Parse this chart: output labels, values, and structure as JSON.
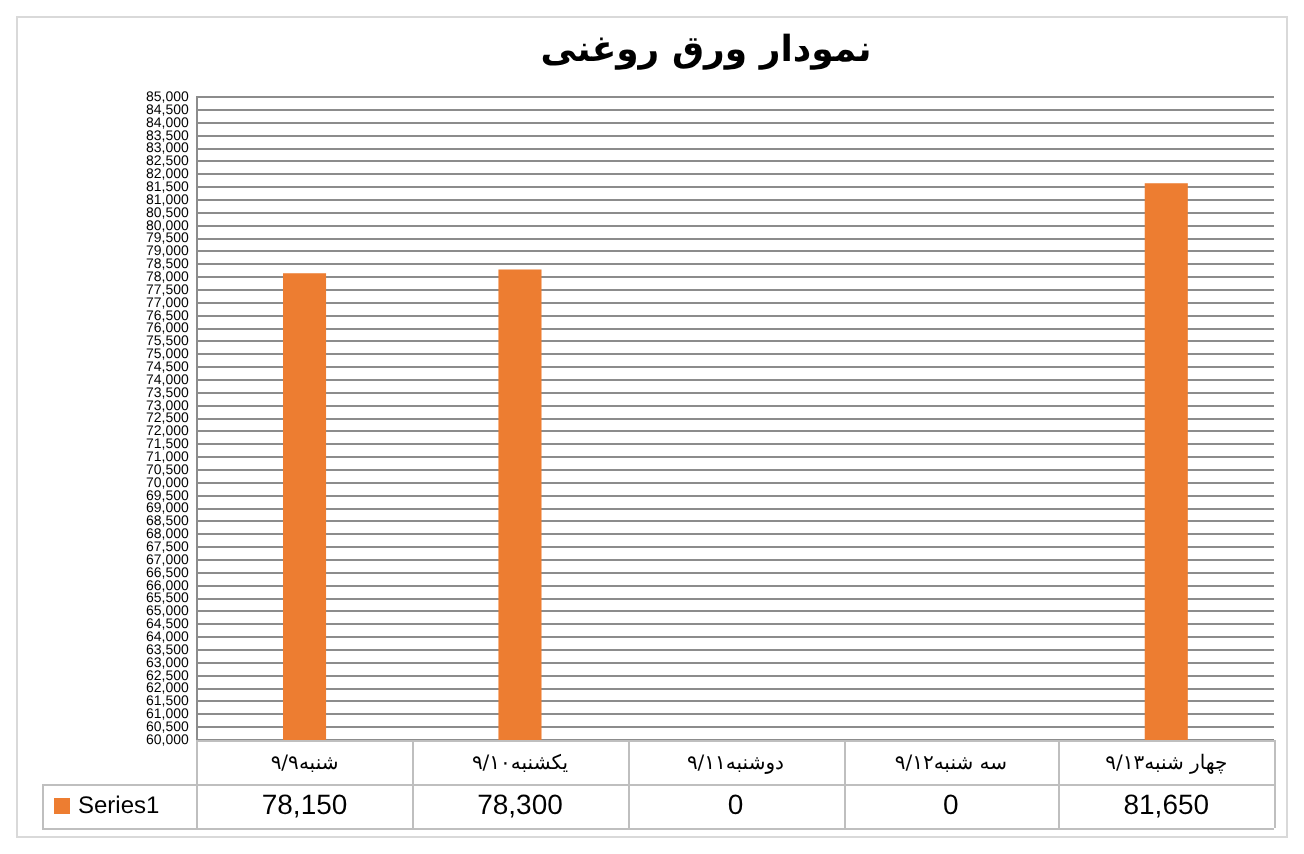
{
  "chart_data": {
    "type": "bar",
    "title": "نمودار ورق روغنی",
    "categories": [
      "شنبه۹/۹",
      "یکشنبه۹/۱۰",
      "دوشنبه۹/۱۱",
      "سه شنبه۹/۱۲",
      "چهار شنبه۹/۱۳"
    ],
    "series": [
      {
        "name": "Series1",
        "color": "#ed7d31",
        "values": [
          78150,
          78300,
          null,
          null,
          81650
        ],
        "value_labels": [
          "78,150",
          "78,300",
          "0",
          "0",
          "81,650"
        ]
      }
    ],
    "ylim": [
      60000,
      85000
    ],
    "yticks": [
      {
        "value": 60000,
        "label": "60,000"
      },
      {
        "value": 60500,
        "label": "60,500"
      },
      {
        "value": 61000,
        "label": "61,000"
      },
      {
        "value": 61500,
        "label": "61,500"
      },
      {
        "value": 62000,
        "label": "62,000"
      },
      {
        "value": 62500,
        "label": "62,500"
      },
      {
        "value": 63000,
        "label": "63,000"
      },
      {
        "value": 63500,
        "label": "63,500"
      },
      {
        "value": 64000,
        "label": "64,000"
      },
      {
        "value": 64500,
        "label": "64,500"
      },
      {
        "value": 65000,
        "label": "65,000"
      },
      {
        "value": 65500,
        "label": "65,500"
      },
      {
        "value": 66000,
        "label": "66,000"
      },
      {
        "value": 66500,
        "label": "66,500"
      },
      {
        "value": 67000,
        "label": "67,000"
      },
      {
        "value": 67500,
        "label": "67,500"
      },
      {
        "value": 68000,
        "label": "68,000"
      },
      {
        "value": 68500,
        "label": "68,500"
      },
      {
        "value": 69000,
        "label": "69,000"
      },
      {
        "value": 69500,
        "label": "69,500"
      },
      {
        "value": 70000,
        "label": "70,000"
      },
      {
        "value": 70500,
        "label": "70,500"
      },
      {
        "value": 71000,
        "label": "71,000"
      },
      {
        "value": 71500,
        "label": "71,500"
      },
      {
        "value": 72000,
        "label": "72,000"
      },
      {
        "value": 72500,
        "label": "72,500"
      },
      {
        "value": 73000,
        "label": "73,000"
      },
      {
        "value": 73500,
        "label": "73,500"
      },
      {
        "value": 74000,
        "label": "74,000"
      },
      {
        "value": 74500,
        "label": "74,500"
      },
      {
        "value": 75000,
        "label": "75,000"
      },
      {
        "value": 75500,
        "label": "75,500"
      },
      {
        "value": 76000,
        "label": "76,000"
      },
      {
        "value": 76500,
        "label": "76,500"
      },
      {
        "value": 77000,
        "label": "77,000"
      },
      {
        "value": 77500,
        "label": "77,500"
      },
      {
        "value": 78000,
        "label": "78,000"
      },
      {
        "value": 78500,
        "label": "78,500"
      },
      {
        "value": 79000,
        "label": "79,000"
      },
      {
        "value": 79500,
        "label": "79,500"
      },
      {
        "value": 80000,
        "label": "80,000"
      },
      {
        "value": 80500,
        "label": "80,500"
      },
      {
        "value": 81000,
        "label": "81,000"
      },
      {
        "value": 81500,
        "label": "81,500"
      },
      {
        "value": 82000,
        "label": "82,000"
      },
      {
        "value": 82500,
        "label": "82,500"
      },
      {
        "value": 83000,
        "label": "83,000"
      },
      {
        "value": 83500,
        "label": "83,500"
      },
      {
        "value": 84000,
        "label": "84,000"
      },
      {
        "value": 84500,
        "label": "84,500"
      },
      {
        "value": 85000,
        "label": "85,000"
      }
    ],
    "grid": "y",
    "legend": "bottom"
  }
}
